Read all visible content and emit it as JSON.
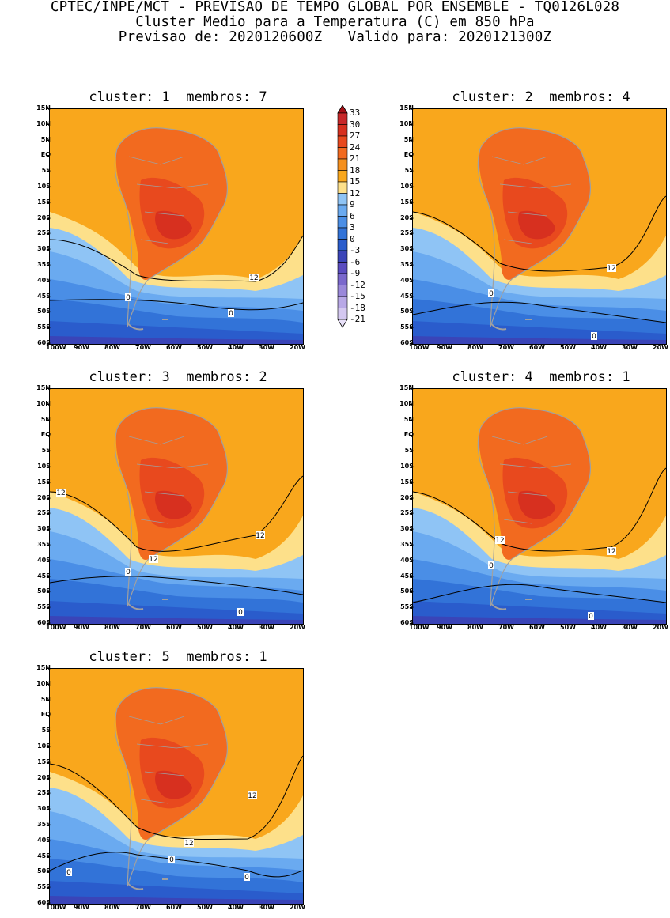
{
  "header": {
    "line1": "CPTEC/INPE/MCT - PREVISAO DE TEMPO GLOBAL POR ENSEMBLE - TQ0126L028",
    "line2": "Cluster Medio para a Temperatura (C) em 850 hPa",
    "line3": "Previsao de: 2020120600Z   Valido para: 2020121300Z"
  },
  "panels": [
    {
      "title": "cluster: 1  membros: 7",
      "contour_labels": [
        "12",
        "0",
        "0"
      ]
    },
    {
      "title": "cluster: 2  membros: 4",
      "contour_labels": [
        "12",
        "0",
        "0"
      ]
    },
    {
      "title": "cluster: 3  membros: 2",
      "contour_labels": [
        "12",
        "12",
        "12",
        "0",
        "0"
      ]
    },
    {
      "title": "cluster: 4  membros: 1",
      "contour_labels": [
        "12",
        "12",
        "0",
        "0"
      ]
    },
    {
      "title": "cluster: 5  membros: 1",
      "contour_labels": [
        "12",
        "12",
        "0",
        "0",
        "0"
      ]
    }
  ],
  "axes": {
    "lat_labels": [
      "15N",
      "10N",
      "5N",
      "EQ",
      "5S",
      "10S",
      "15S",
      "20S",
      "25S",
      "30S",
      "35S",
      "40S",
      "45S",
      "50S",
      "55S",
      "60S"
    ],
    "lon_labels": [
      "100W",
      "90W",
      "80W",
      "70W",
      "60W",
      "50W",
      "40W",
      "30W",
      "20W"
    ]
  },
  "colorbar": {
    "labels": [
      "33",
      "30",
      "27",
      "24",
      "21",
      "18",
      "15",
      "12",
      "9",
      "6",
      "3",
      "0",
      "-3",
      "-6",
      "-9",
      "-12",
      "-15",
      "-18",
      "-21"
    ],
    "colors": [
      "#a50f15",
      "#c8282a",
      "#d7301f",
      "#e8491e",
      "#f26a1f",
      "#f5901e",
      "#f9a71c",
      "#fde08a",
      "#8fc4f5",
      "#6aaaf0",
      "#4a8ee6",
      "#3273d8",
      "#2a5ccc",
      "#3a44b8",
      "#5a4cc0",
      "#7a68cc",
      "#9a88da",
      "#b8a8e6",
      "#d4c8f0",
      "#e8e0f8"
    ]
  }
}
